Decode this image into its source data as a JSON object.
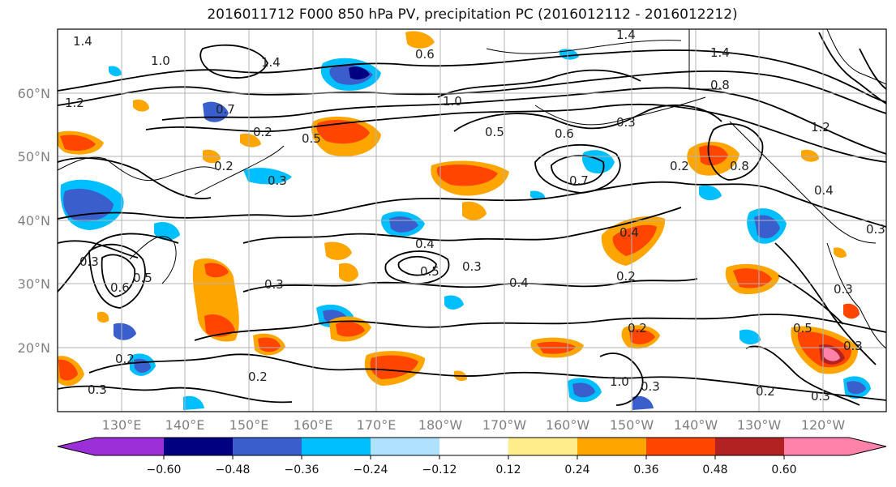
{
  "title": "2016011712 F000 850 hPa PV, precipitation PC (2016012112 - 2016012212)",
  "lat_labels": [
    "60°N",
    "50°N",
    "40°N",
    "30°N",
    "20°N"
  ],
  "lon_labels": [
    "130°E",
    "140°E",
    "150°E",
    "160°E",
    "170°E",
    "180°W",
    "170°W",
    "160°W",
    "150°W",
    "140°W",
    "130°W",
    "120°W"
  ],
  "colorbar": {
    "colors": [
      "#9b30d8",
      "#000080",
      "#3a5fcd",
      "#00bfff",
      "#b0e2ff",
      "#ffffff",
      "#ffec8b",
      "#ffa500",
      "#ff4500",
      "#b22222",
      "#ff82ab"
    ],
    "ticks": [
      "−0.60",
      "−0.48",
      "−0.36",
      "−0.24",
      "−0.12",
      "0.12",
      "0.24",
      "0.36",
      "0.48",
      "0.60"
    ]
  },
  "contour_labels": [
    "1.4",
    "1.0",
    "1.4",
    "1.2",
    "1.4",
    "0.6",
    "1.0",
    "0.7",
    "0.5",
    "0.2",
    "0.3",
    "0.5",
    "0.6",
    "0.7",
    "0.3",
    "0.2",
    "0.8",
    "1.4",
    "0.8",
    "1.2",
    "0.4",
    "0.3",
    "0.4",
    "0.5",
    "0.3",
    "0.4",
    "0.3",
    "0.6",
    "0.5",
    "0.3",
    "0.2",
    "0.4",
    "0.2",
    "0.2",
    "0.3",
    "0.2",
    "0.3",
    "0.5",
    "0.3",
    "0.2",
    "0.3",
    "0.3",
    "1.0",
    "0.2"
  ]
}
